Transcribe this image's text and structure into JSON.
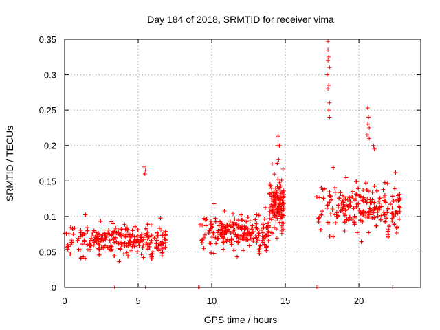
{
  "chart_data": {
    "type": "scatter",
    "title": "Day 184 of 2018, SRMTID for receiver vima",
    "xlabel": "GPS time / hours",
    "ylabel": "SRMTID / TECUs",
    "xlim": [
      0,
      24.2
    ],
    "ylim": [
      0,
      0.35
    ],
    "xticks": [
      0,
      5,
      10,
      15,
      20
    ],
    "xtick_labels": [
      "0",
      "5",
      "10",
      "15",
      "20"
    ],
    "yticks": [
      0,
      0.05,
      0.1,
      0.15,
      0.2,
      0.25,
      0.3,
      0.35
    ],
    "ytick_labels": [
      "0",
      "0.05",
      "0.1",
      "0.15",
      "0.2",
      "0.25",
      "0.3",
      "0.35"
    ],
    "grid": true,
    "marker": "+",
    "color": "#ff0000",
    "series": [
      {
        "name": "SRMTID",
        "segments": [
          {
            "x_range": [
              0.0,
              6.9
            ],
            "mean": 0.062,
            "spread": 0.022,
            "count": 900
          },
          {
            "x_range": [
              9.2,
              13.9
            ],
            "mean": 0.072,
            "spread": 0.025,
            "count": 700
          },
          {
            "x_range": [
              13.9,
              14.9
            ],
            "mean": 0.11,
            "spread": 0.035,
            "count": 160
          },
          {
            "x_range": [
              17.1,
              22.8
            ],
            "mean": 0.105,
            "spread": 0.035,
            "count": 850
          }
        ],
        "points": [
          {
            "x": 5.4,
            "y": 0.17
          },
          {
            "x": 5.5,
            "y": 0.165
          },
          {
            "x": 5.45,
            "y": 0.16
          },
          {
            "x": 17.9,
            "y": 0.347
          },
          {
            "x": 17.9,
            "y": 0.335
          },
          {
            "x": 17.95,
            "y": 0.325
          },
          {
            "x": 17.9,
            "y": 0.32
          },
          {
            "x": 18.0,
            "y": 0.31
          },
          {
            "x": 17.85,
            "y": 0.3
          },
          {
            "x": 17.95,
            "y": 0.285
          },
          {
            "x": 17.9,
            "y": 0.28
          },
          {
            "x": 18.0,
            "y": 0.26
          },
          {
            "x": 17.95,
            "y": 0.25
          },
          {
            "x": 18.0,
            "y": 0.24
          },
          {
            "x": 20.6,
            "y": 0.253
          },
          {
            "x": 20.65,
            "y": 0.24
          },
          {
            "x": 20.6,
            "y": 0.23
          },
          {
            "x": 20.7,
            "y": 0.225
          },
          {
            "x": 20.55,
            "y": 0.215
          },
          {
            "x": 20.7,
            "y": 0.21
          },
          {
            "x": 21.0,
            "y": 0.2
          },
          {
            "x": 21.05,
            "y": 0.195
          },
          {
            "x": 14.5,
            "y": 0.213
          },
          {
            "x": 14.5,
            "y": 0.2
          },
          {
            "x": 14.6,
            "y": 0.2
          },
          {
            "x": 14.55,
            "y": 0.18
          },
          {
            "x": 14.45,
            "y": 0.175
          },
          {
            "x": 3.4,
            "y": 0.0
          },
          {
            "x": 5.5,
            "y": 0.0
          },
          {
            "x": 9.1,
            "y": 0.0
          },
          {
            "x": 9.15,
            "y": 0.0
          },
          {
            "x": 17.1,
            "y": 0.0
          },
          {
            "x": 17.2,
            "y": 0.0
          },
          {
            "x": 22.3,
            "y": 0.0
          }
        ]
      }
    ]
  }
}
